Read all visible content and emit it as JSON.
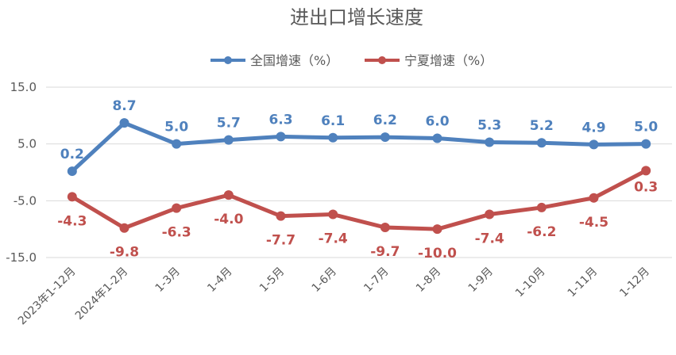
{
  "chart_data": {
    "type": "line",
    "title": "进出口增长速度",
    "categories": [
      "2023年1-12月",
      "2024年1-2月",
      "1-3月",
      "1-4月",
      "1-5月",
      "1-6月",
      "1-7月",
      "1-8月",
      "1-9月",
      "1-10月",
      "1-11月",
      "1-12月"
    ],
    "series": [
      {
        "name": "全国增速（%）",
        "color": "#4F81BD",
        "values": [
          0.2,
          8.7,
          5.0,
          5.7,
          6.3,
          6.1,
          6.2,
          6.0,
          5.3,
          5.2,
          4.9,
          5.0
        ],
        "labels": [
          "0.2",
          "8.7",
          "5.0",
          "5.7",
          "6.3",
          "6.1",
          "6.2",
          "6.0",
          "5.3",
          "5.2",
          "4.9",
          "5.0"
        ],
        "label_position": "above"
      },
      {
        "name": "宁夏增速（%）",
        "color": "#C0504D",
        "values": [
          -4.3,
          -9.8,
          -6.3,
          -4.0,
          -7.7,
          -7.4,
          -9.7,
          -10.0,
          -7.4,
          -6.2,
          -4.5,
          0.3
        ],
        "labels": [
          "-4.3",
          "-9.8",
          "-6.3",
          "-4.0",
          "-7.7",
          "-7.4",
          "-9.7",
          "-10.0",
          "-7.4",
          "-6.2",
          "-4.5",
          "0.3"
        ],
        "label_position": "below"
      }
    ],
    "yticks": [
      "15.0",
      "5.0",
      "-5.0",
      "-15.0"
    ],
    "ytick_values": [
      15,
      5,
      -5,
      -15
    ],
    "ylim": [
      -15,
      15
    ],
    "grid": true,
    "legend": "top-center"
  }
}
